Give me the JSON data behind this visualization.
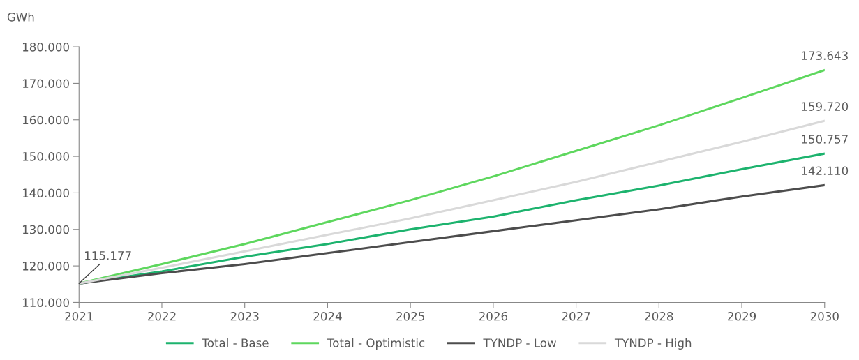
{
  "chart_data": {
    "type": "line",
    "ylabel": "GWh",
    "x": [
      2021,
      2022,
      2023,
      2024,
      2025,
      2026,
      2027,
      2028,
      2029,
      2030
    ],
    "series": [
      {
        "name": "Total - Base",
        "color": "#1db36e",
        "values": [
          115177,
          118500,
          122500,
          126000,
          130000,
          133500,
          138000,
          142000,
          146500,
          150757
        ],
        "value_labels": [
          null,
          null,
          null,
          null,
          null,
          null,
          null,
          null,
          null,
          "150.757"
        ]
      },
      {
        "name": "Total - Optimistic",
        "color": "#5ed75e",
        "values": [
          115177,
          120500,
          126000,
          132000,
          138000,
          144500,
          151500,
          158500,
          166000,
          173643
        ],
        "value_labels": [
          null,
          null,
          null,
          null,
          null,
          null,
          null,
          null,
          null,
          "173.643"
        ]
      },
      {
        "name": "TYNDP - Low",
        "color": "#4d4d4d",
        "values": [
          115177,
          118000,
          120500,
          123500,
          126500,
          129500,
          132500,
          135500,
          139000,
          142110
        ],
        "value_labels": [
          "115.177",
          null,
          null,
          null,
          null,
          null,
          null,
          null,
          null,
          "142.110"
        ]
      },
      {
        "name": "TYNDP - High",
        "color": "#d9d9d9",
        "values": [
          115177,
          119500,
          124000,
          128500,
          133000,
          138000,
          143000,
          148500,
          154000,
          159720
        ],
        "value_labels": [
          null,
          null,
          null,
          null,
          null,
          null,
          null,
          null,
          null,
          "159.720"
        ]
      }
    ],
    "xlim": [
      2021,
      2030
    ],
    "xticks": [
      2021,
      2022,
      2023,
      2024,
      2025,
      2026,
      2027,
      2028,
      2029,
      2030
    ],
    "ylim": [
      110000,
      180000
    ],
    "yticks": [
      {
        "value": 110000,
        "label": "110.000"
      },
      {
        "value": 120000,
        "label": "120.000"
      },
      {
        "value": 130000,
        "label": "130.000"
      },
      {
        "value": 140000,
        "label": "140.000"
      },
      {
        "value": 150000,
        "label": "150.000"
      },
      {
        "value": 160000,
        "label": "160.000"
      },
      {
        "value": 170000,
        "label": "170.000"
      },
      {
        "value": 180000,
        "label": "180.000"
      }
    ],
    "grid": false,
    "legend": "bottom",
    "marker": "none",
    "line_style": "solid"
  }
}
